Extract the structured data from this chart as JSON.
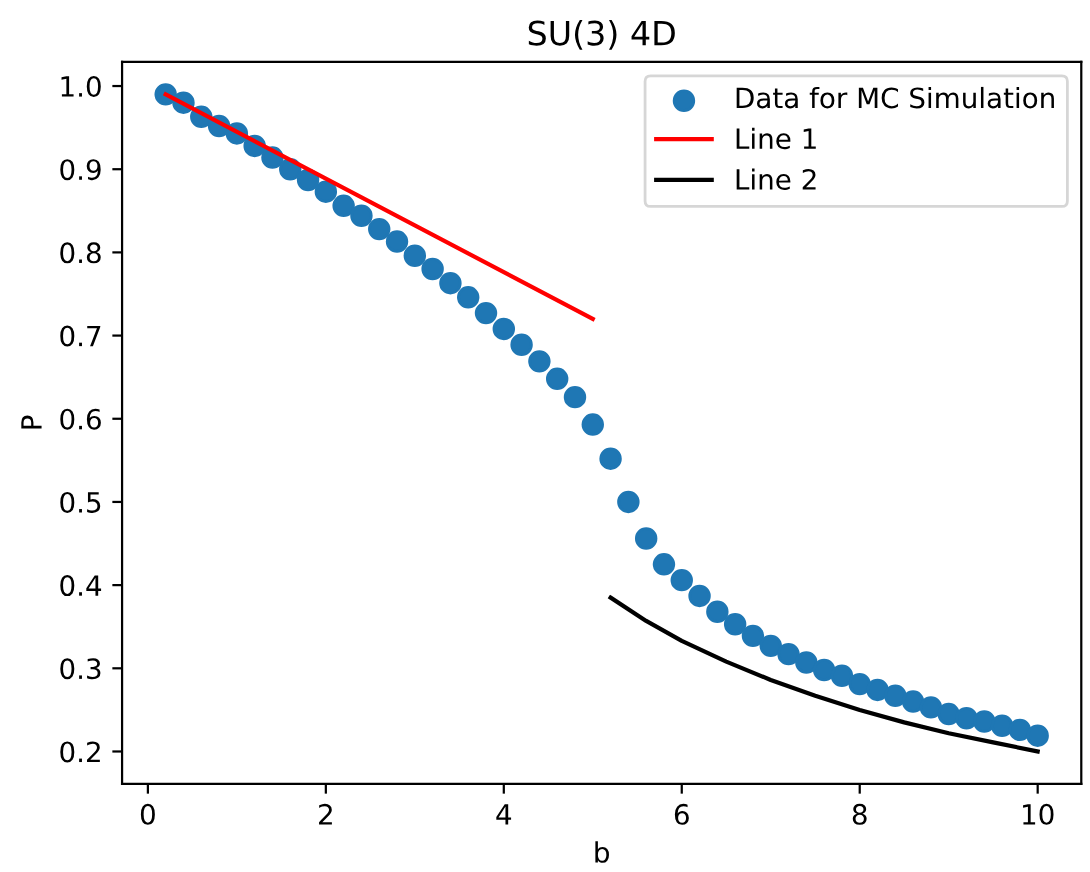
{
  "chart_data": {
    "type": "scatter",
    "title": "SU(3) 4D",
    "xlabel": "b",
    "ylabel": "P",
    "xlim": [
      -0.29,
      10.49
    ],
    "ylim": [
      0.161,
      1.029
    ],
    "xticks": [
      0,
      2,
      4,
      6,
      8,
      10
    ],
    "yticks": [
      {
        "value": 0.2,
        "label": "0.2"
      },
      {
        "value": 0.3,
        "label": "0.3"
      },
      {
        "value": 0.4,
        "label": "0.4"
      },
      {
        "value": 0.5,
        "label": "0.5"
      },
      {
        "value": 0.6,
        "label": "0.6"
      },
      {
        "value": 0.7,
        "label": "0.7"
      },
      {
        "value": 0.8,
        "label": "0.8"
      },
      {
        "value": 0.9,
        "label": "0.9"
      },
      {
        "value": 1.0,
        "label": "1.0"
      }
    ],
    "legend": "top right",
    "grid": false,
    "series": [
      {
        "name": "Data for MC Simulation",
        "marker": "circle",
        "color": "#1f77b4",
        "x": [
          0.2,
          0.4,
          0.6,
          0.8,
          1.0,
          1.2,
          1.4,
          1.6,
          1.8,
          2.0,
          2.2,
          2.4,
          2.6,
          2.8,
          3.0,
          3.2,
          3.4,
          3.6,
          3.8,
          4.0,
          4.2,
          4.4,
          4.6,
          4.8,
          5.0,
          5.2,
          5.4,
          5.6,
          5.8,
          6.0,
          6.2,
          6.4,
          6.6,
          6.8,
          7.0,
          7.2,
          7.4,
          7.6,
          7.8,
          8.0,
          8.2,
          8.4,
          8.6,
          8.8,
          9.0,
          9.2,
          9.4,
          9.6,
          9.8,
          10.0
        ],
        "values": [
          0.99,
          0.98,
          0.963,
          0.952,
          0.943,
          0.928,
          0.914,
          0.9,
          0.887,
          0.873,
          0.856,
          0.844,
          0.828,
          0.813,
          0.796,
          0.78,
          0.763,
          0.746,
          0.727,
          0.708,
          0.689,
          0.669,
          0.648,
          0.626,
          0.593,
          0.552,
          0.5,
          0.456,
          0.425,
          0.406,
          0.387,
          0.368,
          0.353,
          0.339,
          0.327,
          0.317,
          0.307,
          0.298,
          0.291,
          0.281,
          0.274,
          0.267,
          0.26,
          0.253,
          0.245,
          0.24,
          0.236,
          0.231,
          0.226,
          0.219
        ]
      },
      {
        "name": "Line 1",
        "type": "line",
        "line_style": "solid",
        "color": "#ff0000",
        "x": [
          0.2,
          5.0
        ],
        "values": [
          0.99,
          0.72
        ]
      },
      {
        "name": "Line 2",
        "type": "line",
        "line_style": "solid",
        "color": "#000000",
        "x": [
          5.2,
          5.6,
          6.0,
          6.5,
          7.0,
          7.5,
          8.0,
          8.5,
          9.0,
          9.5,
          10.0
        ],
        "values": [
          0.385,
          0.357,
          0.333,
          0.308,
          0.286,
          0.267,
          0.25,
          0.235,
          0.222,
          0.211,
          0.2
        ]
      }
    ]
  }
}
